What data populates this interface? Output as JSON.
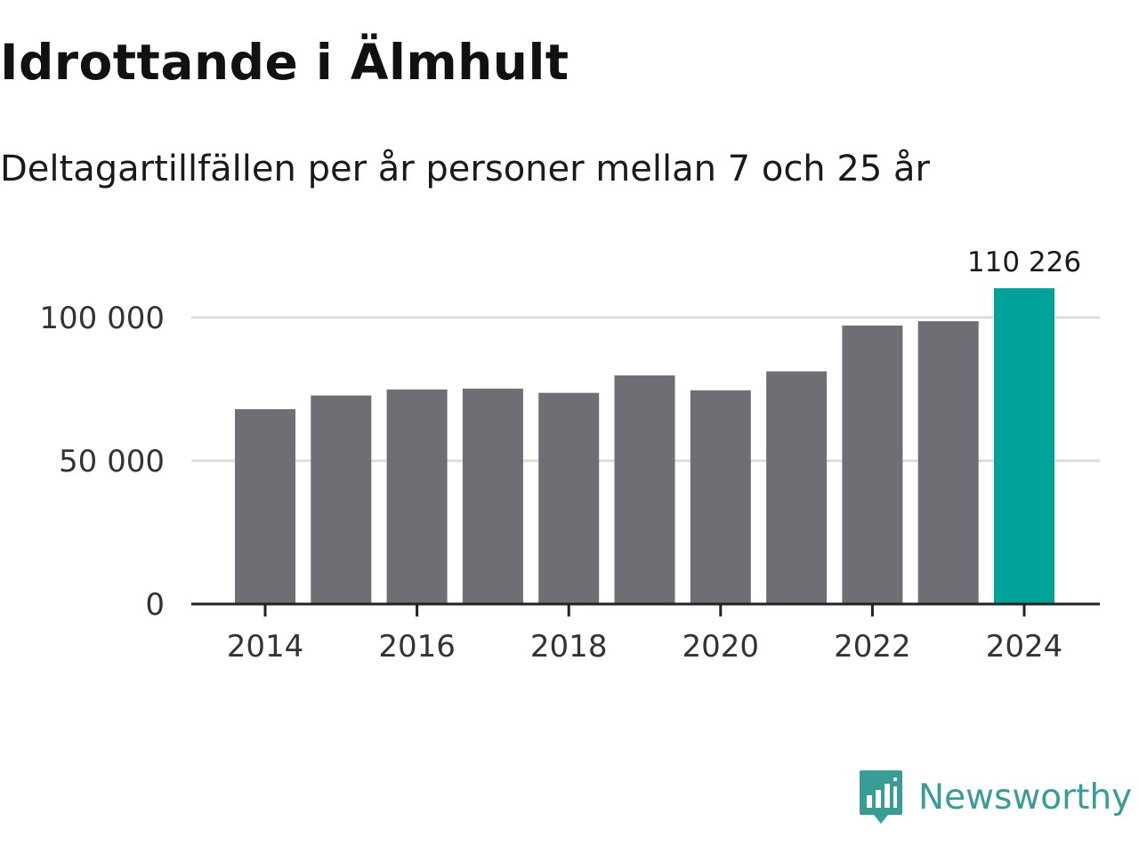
{
  "title": "Idrottande i Älmhult",
  "subtitle": "Deltagartillfällen per år personer mellan 7 och 25 år",
  "brand": {
    "name": "Newsworthy",
    "color": "#3a9c96",
    "icon": "newsworthy-logo-icon"
  },
  "colors": {
    "bar": "#6f6e75",
    "highlight": "#00a39a",
    "grid": "#dddddd",
    "axis": "#222222"
  },
  "chart_data": {
    "type": "bar",
    "title": "Idrottande i Älmhult",
    "subtitle": "Deltagartillfällen per år personer mellan 7 och 25 år",
    "xlabel": "",
    "ylabel": "",
    "categories": [
      "2014",
      "2015",
      "2016",
      "2017",
      "2018",
      "2019",
      "2020",
      "2021",
      "2022",
      "2023",
      "2024"
    ],
    "values": [
      68000,
      72800,
      74900,
      75200,
      73700,
      79800,
      74600,
      81200,
      97200,
      98700,
      110226
    ],
    "highlight_index": 10,
    "data_labels": [
      {
        "index": 10,
        "text": "110 226"
      }
    ],
    "x_tick_labels": [
      "2014",
      "2016",
      "2018",
      "2020",
      "2022",
      "2024"
    ],
    "y_ticks": [
      0,
      50000,
      100000
    ],
    "y_tick_labels": [
      "0",
      "50 000",
      "100 000"
    ],
    "ylim": [
      0,
      110226
    ],
    "grid": true,
    "legend": "none"
  }
}
